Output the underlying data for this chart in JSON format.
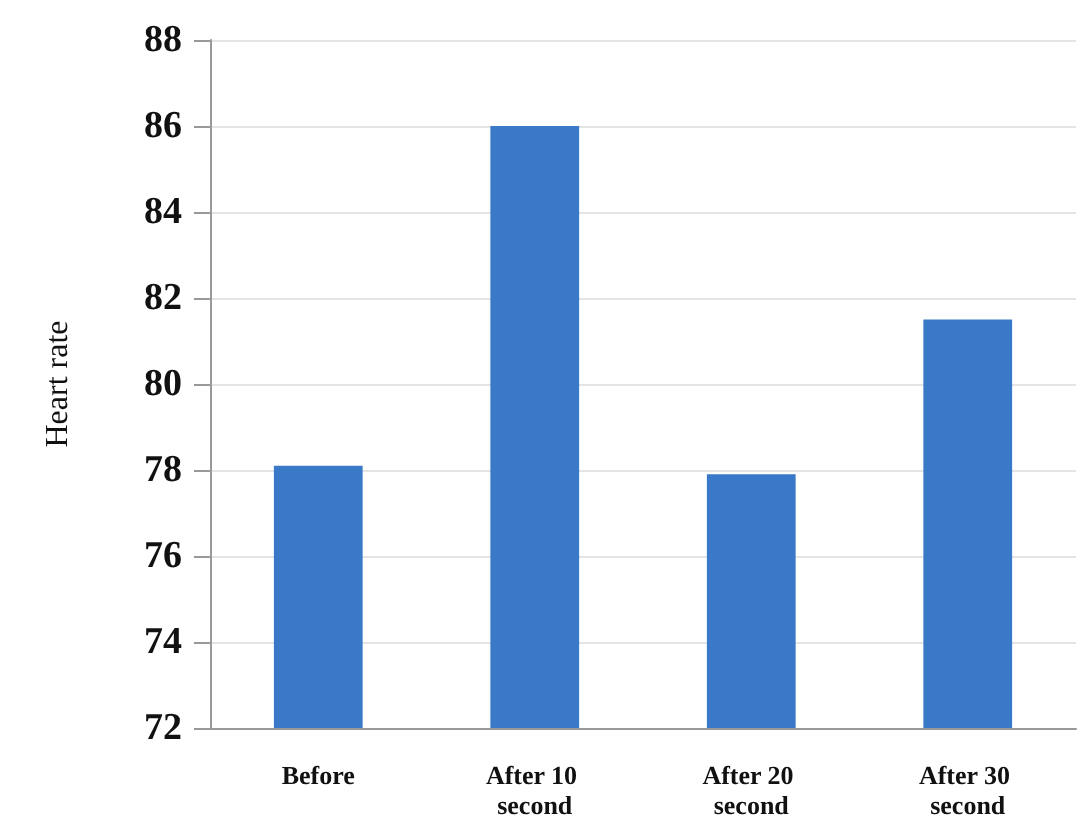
{
  "chart_data": {
    "type": "bar",
    "ylabel": "Heart rate",
    "categories": [
      "Before",
      "After 10 second",
      "After 20 second",
      "After 30 second"
    ],
    "values": [
      78.1,
      86.0,
      77.9,
      81.5
    ],
    "color": "#3a78c8",
    "ylim": [
      72,
      88
    ],
    "yticks": [
      72,
      74,
      76,
      78,
      80,
      82,
      84,
      86,
      88
    ],
    "grid": "y"
  }
}
